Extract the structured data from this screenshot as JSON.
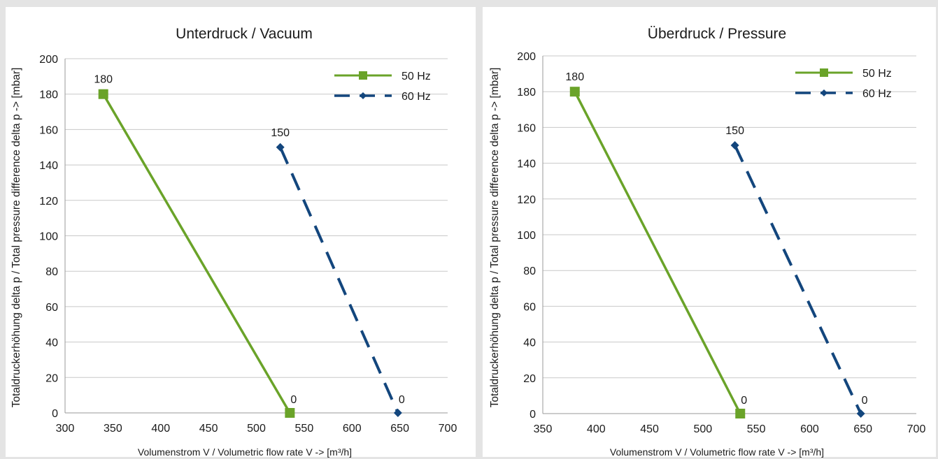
{
  "chart_data": [
    {
      "type": "line",
      "title": "Unterdruck / Vacuum",
      "xlabel": "Volumenstrom  V / Volumetric flow rate V -> [m³/h]",
      "ylabel": "Totaldruckerhöhung delta p / Total pressure difference delta p -> [mbar]",
      "xlim": [
        300,
        700
      ],
      "ylim": [
        0,
        200
      ],
      "x_ticks": [
        300,
        350,
        400,
        450,
        500,
        550,
        600,
        650,
        700
      ],
      "y_ticks": [
        0,
        20,
        40,
        60,
        80,
        100,
        120,
        140,
        160,
        180,
        200
      ],
      "grid": true,
      "legend_position": "top-right",
      "series": [
        {
          "name": "50 Hz",
          "color": "#6aa329",
          "style": "solid",
          "marker": "square",
          "x": [
            340,
            535
          ],
          "y": [
            180,
            0
          ],
          "labels": [
            "180",
            "0"
          ]
        },
        {
          "name": "60 Hz",
          "color": "#13467d",
          "style": "dashed",
          "marker": "diamond",
          "x": [
            525,
            648
          ],
          "y": [
            150,
            0
          ],
          "labels": [
            "150",
            "0"
          ]
        }
      ]
    },
    {
      "type": "line",
      "title": "Überdruck / Pressure",
      "xlabel": "Volumenstrom  V / Volumetric flow rate V -> [m³/h]",
      "ylabel": "Totaldruckerhöhung delta p / Total pressure difference delta p -> [mbar]",
      "xlim": [
        350,
        700
      ],
      "ylim": [
        0,
        200
      ],
      "x_ticks": [
        350,
        400,
        450,
        500,
        550,
        600,
        650,
        700
      ],
      "y_ticks": [
        0,
        20,
        40,
        60,
        80,
        100,
        120,
        140,
        160,
        180,
        200
      ],
      "grid": true,
      "legend_position": "top-right",
      "series": [
        {
          "name": "50 Hz",
          "color": "#6aa329",
          "style": "solid",
          "marker": "square",
          "x": [
            380,
            535
          ],
          "y": [
            180,
            0
          ],
          "labels": [
            "180",
            "0"
          ]
        },
        {
          "name": "60 Hz",
          "color": "#13467d",
          "style": "dashed",
          "marker": "diamond",
          "x": [
            530,
            648
          ],
          "y": [
            150,
            0
          ],
          "labels": [
            "150",
            "0"
          ]
        }
      ]
    }
  ]
}
